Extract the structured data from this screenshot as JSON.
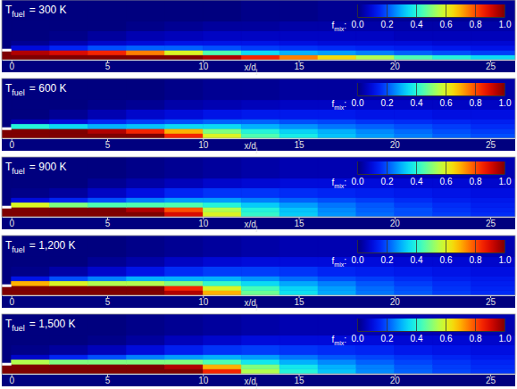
{
  "chart_data": [
    {
      "type": "heatmap",
      "title": {
        "symbol": "T",
        "subscript": "fuel",
        "text": "= 300 K"
      },
      "xlabel": {
        "text": "x/d",
        "subscript": "j"
      },
      "xlim": [
        -0.5,
        26.3
      ],
      "ylim": [
        0,
        3.1
      ],
      "xticks": [
        0,
        5,
        10,
        15,
        20,
        25
      ],
      "tick_labels": "x",
      "x_edges": [
        -0.5,
        0,
        2,
        4,
        6,
        8,
        10,
        12,
        14,
        16,
        18,
        20,
        22,
        24,
        26.3
      ],
      "y_edges": [
        0,
        0.25,
        0.5,
        0.75,
        1.0,
        1.5,
        2.0,
        3.1
      ],
      "cells": [
        [
          1,
          1,
          1,
          1,
          1,
          1,
          0.95,
          0.85,
          0.75,
          0.65,
          0.55,
          0.45,
          0.4,
          0.35
        ],
        [
          1,
          0.95,
          0.9,
          0.85,
          0.75,
          0.6,
          0.45,
          0.35,
          0.3,
          0.28,
          0.25,
          0.22,
          0.2,
          0.18
        ],
        [
          0,
          0.1,
          0.15,
          0.2,
          0.22,
          0.22,
          0.2,
          0.18,
          0.17,
          0.16,
          0.15,
          0.14,
          0.13,
          0.12
        ],
        [
          0,
          0.02,
          0.05,
          0.08,
          0.1,
          0.12,
          0.12,
          0.12,
          0.11,
          0.1,
          0.1,
          0.1,
          0.09,
          0.09
        ],
        [
          0,
          0,
          0.01,
          0.03,
          0.05,
          0.06,
          0.07,
          0.07,
          0.07,
          0.07,
          0.07,
          0.06,
          0.06,
          0.06
        ],
        [
          0,
          0,
          0,
          0,
          0.01,
          0.02,
          0.03,
          0.03,
          0.04,
          0.04,
          0.04,
          0.04,
          0.04,
          0.04
        ],
        [
          0,
          0,
          0,
          0,
          0,
          0,
          0,
          0.01,
          0.01,
          0.02,
          0.02,
          0.02,
          0.02,
          0.02
        ]
      ],
      "colorbar": {
        "label": {
          "symbol": "f",
          "subscript": "mix",
          "suffix": ":"
        },
        "range": [
          0,
          1
        ],
        "ticks": [
          {
            "value": 0,
            "label": "0.0"
          },
          {
            "value": 0.2,
            "label": "0.2"
          },
          {
            "value": 0.4,
            "label": "0.4"
          },
          {
            "value": 0.6,
            "label": "0.6"
          },
          {
            "value": 0.8,
            "label": "0.8"
          },
          {
            "value": 1,
            "label": "1.0"
          }
        ]
      }
    },
    {
      "type": "heatmap",
      "title": {
        "symbol": "T",
        "subscript": "fuel",
        "text": "= 600 K"
      },
      "xlabel": {
        "text": "x/d",
        "subscript": "j"
      },
      "xlim": [
        -0.5,
        26.3
      ],
      "ylim": [
        0,
        3.1
      ],
      "xticks": [
        0,
        5,
        10,
        15,
        20,
        25
      ],
      "tick_labels": "x",
      "x_edges": [
        -0.5,
        0,
        2,
        4,
        6,
        8,
        10,
        12,
        14,
        16,
        18,
        20,
        22,
        24,
        26.3
      ],
      "y_edges": [
        0,
        0.25,
        0.5,
        0.75,
        1.0,
        1.5,
        2.0,
        3.1
      ],
      "cells": [
        [
          1,
          1,
          1,
          1,
          1,
          0.85,
          0.6,
          0.45,
          0.38,
          0.32,
          0.28,
          0.25,
          0.22,
          0.2
        ],
        [
          1,
          1,
          1,
          0.95,
          0.85,
          0.7,
          0.5,
          0.4,
          0.34,
          0.3,
          0.26,
          0.23,
          0.2,
          0.18
        ],
        [
          0,
          0.4,
          0.35,
          0.3,
          0.32,
          0.35,
          0.35,
          0.3,
          0.27,
          0.24,
          0.22,
          0.2,
          0.18,
          0.16
        ],
        [
          0,
          0.05,
          0.1,
          0.15,
          0.18,
          0.2,
          0.22,
          0.22,
          0.2,
          0.19,
          0.17,
          0.16,
          0.15,
          0.14
        ],
        [
          0,
          0,
          0.02,
          0.05,
          0.08,
          0.1,
          0.12,
          0.13,
          0.13,
          0.13,
          0.12,
          0.12,
          0.11,
          0.11
        ],
        [
          0,
          0,
          0,
          0.01,
          0.02,
          0.04,
          0.05,
          0.06,
          0.07,
          0.07,
          0.07,
          0.07,
          0.07,
          0.07
        ],
        [
          0,
          0,
          0,
          0,
          0,
          0.01,
          0.02,
          0.02,
          0.03,
          0.03,
          0.04,
          0.04,
          0.04,
          0.04
        ]
      ],
      "colorbar": {
        "label": {
          "symbol": "f",
          "subscript": "mix",
          "suffix": ":"
        },
        "range": [
          0,
          1
        ],
        "ticks": [
          {
            "value": 0,
            "label": "0.0"
          },
          {
            "value": 0.2,
            "label": "0.2"
          },
          {
            "value": 0.4,
            "label": "0.4"
          },
          {
            "value": 0.6,
            "label": "0.6"
          },
          {
            "value": 0.8,
            "label": "0.8"
          },
          {
            "value": 1,
            "label": "1.0"
          }
        ]
      }
    },
    {
      "type": "heatmap",
      "title": {
        "symbol": "T",
        "subscript": "fuel",
        "text": "= 900 K"
      },
      "xlabel": {
        "text": "x/d",
        "subscript": "j"
      },
      "xlim": [
        -0.5,
        26.3
      ],
      "ylim": [
        0,
        3.1
      ],
      "xticks": [
        0,
        5,
        10,
        15,
        20,
        25
      ],
      "tick_labels": "x",
      "x_edges": [
        -0.5,
        0,
        2,
        4,
        6,
        8,
        10,
        12,
        14,
        16,
        18,
        20,
        22,
        24,
        26.3
      ],
      "y_edges": [
        0,
        0.25,
        0.5,
        0.75,
        1.0,
        1.5,
        2.0,
        3.1
      ],
      "cells": [
        [
          1,
          1,
          1,
          1,
          1,
          0.9,
          0.6,
          0.42,
          0.33,
          0.27,
          0.23,
          0.2,
          0.18,
          0.16
        ],
        [
          1,
          1,
          1,
          1,
          0.95,
          0.8,
          0.55,
          0.4,
          0.32,
          0.26,
          0.22,
          0.2,
          0.17,
          0.15
        ],
        [
          0,
          0.6,
          0.5,
          0.45,
          0.45,
          0.45,
          0.4,
          0.33,
          0.28,
          0.24,
          0.21,
          0.18,
          0.16,
          0.14
        ],
        [
          0,
          0.1,
          0.15,
          0.2,
          0.25,
          0.28,
          0.28,
          0.25,
          0.22,
          0.2,
          0.18,
          0.16,
          0.14,
          0.13
        ],
        [
          0,
          0.01,
          0.03,
          0.07,
          0.11,
          0.15,
          0.17,
          0.17,
          0.16,
          0.15,
          0.14,
          0.13,
          0.12,
          0.11
        ],
        [
          0,
          0,
          0,
          0.02,
          0.04,
          0.06,
          0.08,
          0.09,
          0.1,
          0.1,
          0.1,
          0.09,
          0.09,
          0.08
        ],
        [
          0,
          0,
          0,
          0,
          0.01,
          0.02,
          0.03,
          0.04,
          0.05,
          0.05,
          0.05,
          0.05,
          0.05,
          0.05
        ]
      ],
      "colorbar": {
        "label": {
          "symbol": "f",
          "subscript": "mix",
          "suffix": ":"
        },
        "range": [
          0,
          1
        ],
        "ticks": [
          {
            "value": 0,
            "label": "0.0"
          },
          {
            "value": 0.2,
            "label": "0.2"
          },
          {
            "value": 0.4,
            "label": "0.4"
          },
          {
            "value": 0.6,
            "label": "0.6"
          },
          {
            "value": 0.8,
            "label": "0.8"
          },
          {
            "value": 1,
            "label": "1.0"
          }
        ]
      }
    },
    {
      "type": "heatmap",
      "title": {
        "symbol": "T",
        "subscript": "fuel",
        "text": "= 1,200 K"
      },
      "xlabel": {
        "text": "x/d",
        "subscript": "j"
      },
      "xlim": [
        -0.5,
        26.3
      ],
      "ylim": [
        0,
        3.1
      ],
      "xticks": [
        0,
        5,
        10,
        15,
        20,
        25
      ],
      "tick_labels": "x",
      "x_edges": [
        -0.5,
        0,
        2,
        4,
        6,
        8,
        10,
        12,
        14,
        16,
        18,
        20,
        22,
        24,
        26.3
      ],
      "y_edges": [
        0,
        0.25,
        0.5,
        0.75,
        1.0,
        1.5,
        2.0,
        3.1
      ],
      "cells": [
        [
          1,
          1,
          1,
          1,
          1,
          0.95,
          0.7,
          0.48,
          0.36,
          0.29,
          0.24,
          0.21,
          0.18,
          0.16
        ],
        [
          1,
          1,
          1,
          1,
          1,
          0.85,
          0.6,
          0.44,
          0.34,
          0.28,
          0.23,
          0.2,
          0.17,
          0.15
        ],
        [
          0,
          0.7,
          0.6,
          0.55,
          0.55,
          0.5,
          0.42,
          0.35,
          0.29,
          0.25,
          0.21,
          0.18,
          0.16,
          0.14
        ],
        [
          0,
          0.12,
          0.2,
          0.25,
          0.3,
          0.3,
          0.3,
          0.27,
          0.23,
          0.2,
          0.18,
          0.16,
          0.14,
          0.13
        ],
        [
          0,
          0.01,
          0.04,
          0.08,
          0.12,
          0.16,
          0.18,
          0.18,
          0.17,
          0.15,
          0.14,
          0.13,
          0.12,
          0.11
        ],
        [
          0,
          0,
          0,
          0.02,
          0.04,
          0.07,
          0.09,
          0.1,
          0.1,
          0.1,
          0.1,
          0.09,
          0.09,
          0.08
        ],
        [
          0,
          0,
          0,
          0,
          0.01,
          0.02,
          0.03,
          0.04,
          0.05,
          0.05,
          0.05,
          0.05,
          0.05,
          0.05
        ]
      ],
      "colorbar": {
        "label": {
          "symbol": "f",
          "subscript": "mix",
          "suffix": ":"
        },
        "range": [
          0,
          1
        ],
        "ticks": [
          {
            "value": 0,
            "label": "0.0"
          },
          {
            "value": 0.2,
            "label": "0.2"
          },
          {
            "value": 0.4,
            "label": "0.4"
          },
          {
            "value": 0.6,
            "label": "0.6"
          },
          {
            "value": 0.8,
            "label": "0.8"
          },
          {
            "value": 1,
            "label": "1.0"
          }
        ]
      }
    },
    {
      "type": "heatmap",
      "title": {
        "symbol": "T",
        "subscript": "fuel",
        "text": "= 1,500 K"
      },
      "xlabel": {
        "text": "x/d",
        "subscript": "j"
      },
      "xlim": [
        -0.5,
        26.3
      ],
      "ylim": [
        0,
        3.1
      ],
      "xticks": [
        0,
        5,
        10,
        15,
        20,
        25
      ],
      "tick_labels": "x",
      "x_edges": [
        -0.5,
        0,
        2,
        4,
        6,
        8,
        10,
        12,
        14,
        16,
        18,
        20,
        22,
        24,
        26.3
      ],
      "y_edges": [
        0,
        0.25,
        0.5,
        0.75,
        1.0,
        1.5,
        2.0,
        3.1
      ],
      "cells": [
        [
          1,
          1,
          1,
          1,
          1,
          1,
          0.85,
          0.55,
          0.4,
          0.32,
          0.26,
          0.22,
          0.19,
          0.17
        ],
        [
          1,
          1,
          1,
          1,
          1,
          0.95,
          0.7,
          0.5,
          0.37,
          0.3,
          0.25,
          0.21,
          0.18,
          0.16
        ],
        [
          0,
          0.55,
          0.5,
          0.5,
          0.5,
          0.5,
          0.45,
          0.37,
          0.3,
          0.26,
          0.22,
          0.19,
          0.17,
          0.15
        ],
        [
          0,
          0.08,
          0.15,
          0.2,
          0.25,
          0.28,
          0.3,
          0.28,
          0.24,
          0.21,
          0.19,
          0.17,
          0.15,
          0.13
        ],
        [
          0,
          0.01,
          0.03,
          0.06,
          0.1,
          0.14,
          0.17,
          0.18,
          0.17,
          0.16,
          0.15,
          0.13,
          0.12,
          0.11
        ],
        [
          0,
          0,
          0,
          0.01,
          0.03,
          0.06,
          0.08,
          0.1,
          0.1,
          0.1,
          0.1,
          0.09,
          0.09,
          0.08
        ],
        [
          0,
          0,
          0,
          0,
          0.01,
          0.02,
          0.03,
          0.04,
          0.05,
          0.05,
          0.05,
          0.05,
          0.05,
          0.05
        ]
      ],
      "colorbar": {
        "label": {
          "symbol": "f",
          "subscript": "mix",
          "suffix": ":"
        },
        "range": [
          0,
          1
        ],
        "ticks": [
          {
            "value": 0,
            "label": "0.0"
          },
          {
            "value": 0.2,
            "label": "0.2"
          },
          {
            "value": 0.4,
            "label": "0.4"
          },
          {
            "value": 0.6,
            "label": "0.6"
          },
          {
            "value": 0.8,
            "label": "0.8"
          },
          {
            "value": 1,
            "label": "1.0"
          }
        ]
      }
    }
  ]
}
